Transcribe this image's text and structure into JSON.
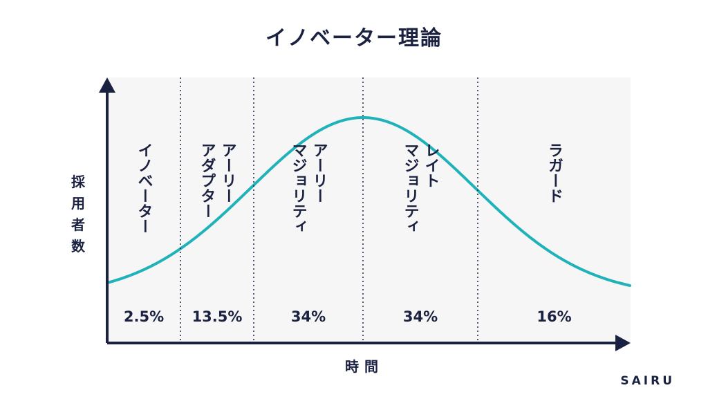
{
  "title": "イノベーター理論",
  "y_axis_label": "採用者数",
  "x_axis_label": "時間",
  "brand": "SAIRU",
  "colors": {
    "curve": "#1fb2b9",
    "axis": "#1b2140",
    "text": "#1b2140",
    "panel": "#f6f6f6"
  },
  "segments": [
    {
      "name_lines": [
        "イノベーター"
      ],
      "percent": "2.5%"
    },
    {
      "name_lines": [
        "アーリー",
        "アダプター"
      ],
      "percent": "13.5%"
    },
    {
      "name_lines": [
        "アーリー",
        "マジョリティ"
      ],
      "percent": "34%"
    },
    {
      "name_lines": [
        "レイト",
        "マジョリティ"
      ],
      "percent": "34%"
    },
    {
      "name_lines": [
        "ラガード"
      ],
      "percent": "16%"
    }
  ]
}
